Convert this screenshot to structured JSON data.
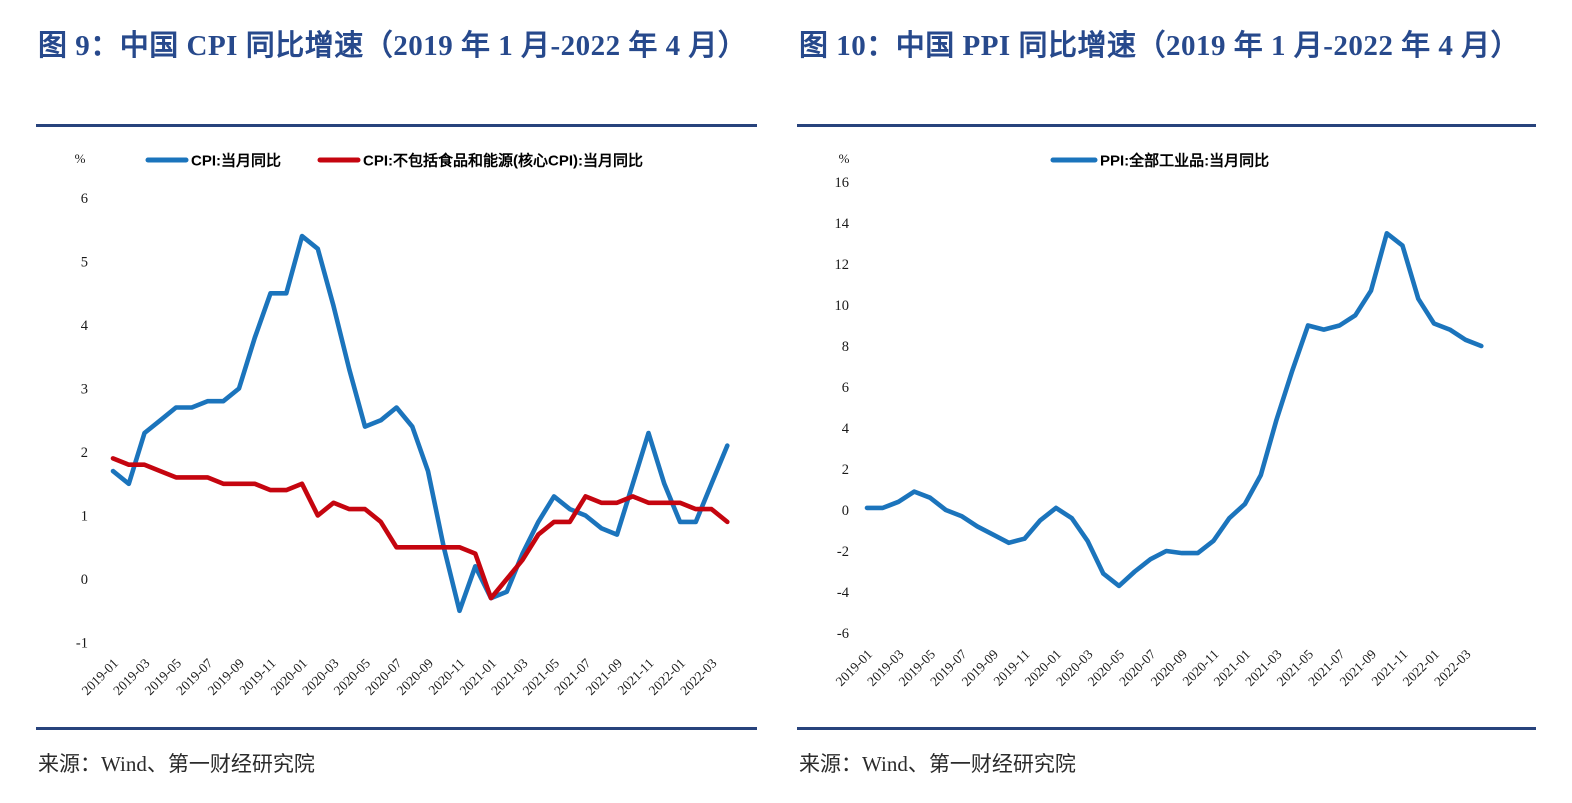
{
  "colors": {
    "title": "#27498C",
    "divider": "#28437C",
    "cpi_line": "#1B74BC",
    "core_cpi_line": "#C5050F",
    "ppi_line": "#1B74BC",
    "text": "#1a1a1a"
  },
  "panels": [
    {
      "title": "图 9：中国 CPI 同比增速（2019 年 1 月-2022 年 4 月）",
      "source": "来源：Wind、第一财经研究院"
    },
    {
      "title": "图 10：中国 PPI 同比增速（2019 年 1 月-2022 年 4 月）",
      "source": "来源：Wind、第一财经研究院"
    }
  ],
  "chart_data": [
    {
      "type": "line",
      "title": "图 9：中国 CPI 同比增速（2019 年 1 月-2022 年 4 月）",
      "unit": "%",
      "grid": false,
      "legend_position": "top",
      "ylim": [
        -1,
        6
      ],
      "yticks": [
        6,
        5,
        4,
        3,
        2,
        1,
        0,
        -1
      ],
      "x": [
        "2019-01",
        "2019-02",
        "2019-03",
        "2019-04",
        "2019-05",
        "2019-06",
        "2019-07",
        "2019-08",
        "2019-09",
        "2019-10",
        "2019-11",
        "2019-12",
        "2020-01",
        "2020-02",
        "2020-03",
        "2020-04",
        "2020-05",
        "2020-06",
        "2020-07",
        "2020-08",
        "2020-09",
        "2020-10",
        "2020-11",
        "2020-12",
        "2021-01",
        "2021-02",
        "2021-03",
        "2021-04",
        "2021-05",
        "2021-06",
        "2021-07",
        "2021-08",
        "2021-09",
        "2021-10",
        "2021-11",
        "2021-12",
        "2022-01",
        "2022-02",
        "2022-03",
        "2022-04"
      ],
      "x_tick_labels": [
        "2019-01",
        "2019-03",
        "2019-05",
        "2019-07",
        "2019-09",
        "2019-11",
        "2020-01",
        "2020-03",
        "2020-05",
        "2020-07",
        "2020-09",
        "2020-11",
        "2021-01",
        "2021-03",
        "2021-05",
        "2021-07",
        "2021-09",
        "2021-11",
        "2022-01",
        "2022-03"
      ],
      "series": [
        {
          "name": "CPI:当月同比",
          "color": "#1B74BC",
          "values": [
            1.7,
            1.5,
            2.3,
            2.5,
            2.7,
            2.7,
            2.8,
            2.8,
            3.0,
            3.8,
            4.5,
            4.5,
            5.4,
            5.2,
            4.3,
            3.3,
            2.4,
            2.5,
            2.7,
            2.4,
            1.7,
            0.5,
            -0.5,
            0.2,
            -0.3,
            -0.2,
            0.4,
            0.9,
            1.3,
            1.1,
            1.0,
            0.8,
            0.7,
            1.5,
            2.3,
            1.5,
            0.9,
            0.9,
            1.5,
            2.1
          ]
        },
        {
          "name": "CPI:不包括食品和能源(核心CPI):当月同比",
          "color": "#C5050F",
          "values": [
            1.9,
            1.8,
            1.8,
            1.7,
            1.6,
            1.6,
            1.6,
            1.5,
            1.5,
            1.5,
            1.4,
            1.4,
            1.5,
            1.0,
            1.2,
            1.1,
            1.1,
            0.9,
            0.5,
            0.5,
            0.5,
            0.5,
            0.5,
            0.4,
            -0.3,
            0.0,
            0.3,
            0.7,
            0.9,
            0.9,
            1.3,
            1.2,
            1.2,
            1.3,
            1.2,
            1.2,
            1.2,
            1.1,
            1.1,
            0.9
          ]
        }
      ]
    },
    {
      "type": "line",
      "title": "图 10：中国 PPI 同比增速（2019 年 1 月-2022 年 4 月）",
      "unit": "%",
      "grid": false,
      "legend_position": "top",
      "ylim": [
        -6,
        16
      ],
      "yticks": [
        16,
        14,
        12,
        10,
        8,
        6,
        4,
        2,
        0,
        -2,
        -4,
        -6
      ],
      "x": [
        "2019-01",
        "2019-02",
        "2019-03",
        "2019-04",
        "2019-05",
        "2019-06",
        "2019-07",
        "2019-08",
        "2019-09",
        "2019-10",
        "2019-11",
        "2019-12",
        "2020-01",
        "2020-02",
        "2020-03",
        "2020-04",
        "2020-05",
        "2020-06",
        "2020-07",
        "2020-08",
        "2020-09",
        "2020-10",
        "2020-11",
        "2020-12",
        "2021-01",
        "2021-02",
        "2021-03",
        "2021-04",
        "2021-05",
        "2021-06",
        "2021-07",
        "2021-08",
        "2021-09",
        "2021-10",
        "2021-11",
        "2021-12",
        "2022-01",
        "2022-02",
        "2022-03",
        "2022-04"
      ],
      "x_tick_labels": [
        "2019-01",
        "2019-03",
        "2019-05",
        "2019-07",
        "2019-09",
        "2019-11",
        "2020-01",
        "2020-03",
        "2020-05",
        "2020-07",
        "2020-09",
        "2020-11",
        "2021-01",
        "2021-03",
        "2021-05",
        "2021-07",
        "2021-09",
        "2021-11",
        "2022-01",
        "2022-03"
      ],
      "series": [
        {
          "name": "PPI:全部工业品:当月同比",
          "color": "#1B74BC",
          "values": [
            0.1,
            0.1,
            0.4,
            0.9,
            0.6,
            0.0,
            -0.3,
            -0.8,
            -1.2,
            -1.6,
            -1.4,
            -0.5,
            0.1,
            -0.4,
            -1.5,
            -3.1,
            -3.7,
            -3.0,
            -2.4,
            -2.0,
            -2.1,
            -2.1,
            -1.5,
            -0.4,
            0.3,
            1.7,
            4.4,
            6.8,
            9.0,
            8.8,
            9.0,
            9.5,
            10.7,
            13.5,
            12.9,
            10.3,
            9.1,
            8.8,
            8.3,
            8.0
          ]
        }
      ]
    }
  ]
}
